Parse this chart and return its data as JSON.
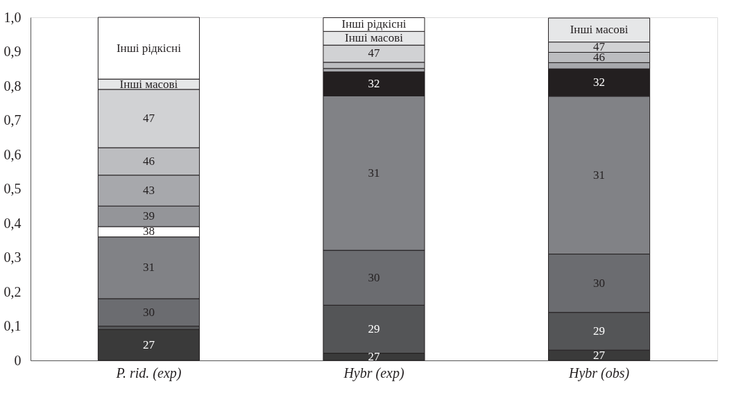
{
  "chart_data": {
    "type": "bar",
    "stacked": true,
    "categories": [
      "P. rid. (exp)",
      "Hybr (exp)",
      "Hybr (obs)"
    ],
    "series": [
      {
        "name": "27",
        "color": "#3a3a3a",
        "values": [
          0.09,
          0.021,
          0.03
        ]
      },
      {
        "name": "29",
        "color": "#545557",
        "values": [
          0.01,
          0.14,
          0.11
        ]
      },
      {
        "name": "30",
        "color": "#6b6c70",
        "values": [
          0.08,
          0.16,
          0.17
        ]
      },
      {
        "name": "31",
        "color": "#818286",
        "values": [
          0.18,
          0.45,
          0.46
        ]
      },
      {
        "name": "32",
        "color": "#231f20",
        "values": [
          null,
          0.07,
          0.08
        ]
      },
      {
        "name": "38",
        "color": "#ffffff",
        "values": [
          0.03,
          null,
          null
        ]
      },
      {
        "name": "39",
        "color": "#949599",
        "values": [
          0.06,
          null,
          null
        ]
      },
      {
        "name": "43",
        "color": "#a7a8ac",
        "values": [
          0.09,
          0.01,
          0.018
        ]
      },
      {
        "name": "46",
        "color": "#bcbdc0",
        "values": [
          0.08,
          0.018,
          0.03
        ]
      },
      {
        "name": "47",
        "color": "#d1d2d4",
        "values": [
          0.17,
          0.05,
          0.03
        ]
      },
      {
        "name": "Інші масові",
        "color": "#e6e7e8",
        "values": [
          0.03,
          0.04,
          0.07
        ]
      },
      {
        "name": "Інші рідкісні",
        "color": "#ffffff",
        "values": [
          0.18,
          0.04,
          null
        ]
      }
    ],
    "ylim": [
      0,
      1.0
    ],
    "yticks": [
      0,
      {
        "value": 0.1,
        "label": "0,1"
      },
      {
        "value": 0.2,
        "label": "0,2"
      },
      {
        "value": 0.3,
        "label": "0,3"
      },
      {
        "value": 0.4,
        "label": "0,4"
      },
      {
        "value": 0.5,
        "label": "0,5"
      },
      {
        "value": 0.6,
        "label": "0,6"
      },
      {
        "value": 0.7,
        "label": "0,7"
      },
      {
        "value": 0.8,
        "label": "0,8"
      },
      {
        "value": 0.9,
        "label": "0,9"
      },
      {
        "value": 1.0,
        "label": "1,0"
      }
    ],
    "grid": false
  }
}
